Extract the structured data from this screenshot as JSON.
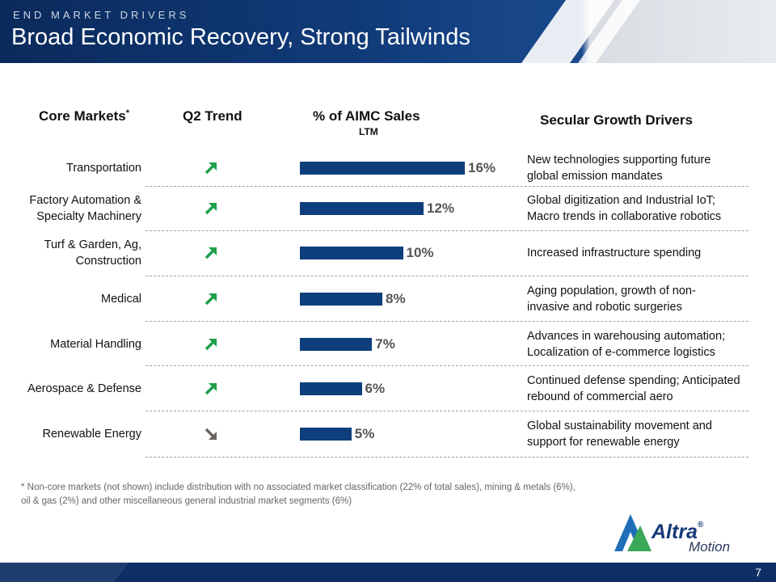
{
  "header": {
    "kicker": "END MARKET DRIVERS",
    "title": "Broad Economic Recovery, Strong Tailwinds"
  },
  "columns": {
    "core_markets": "Core Markets",
    "core_markets_mark": "*",
    "q2_trend": "Q2 Trend",
    "sales": "% of AIMC Sales",
    "sales_sub": "LTM",
    "drivers": "Secular Growth Drivers"
  },
  "colors": {
    "brand_navy": "#0e3f7c",
    "trend_up": "#1fa04a",
    "trend_down": "#6b6560"
  },
  "rows": [
    {
      "market": [
        "Transportation"
      ],
      "trend": "up",
      "pct_label": "16%",
      "pct": 16,
      "driver": [
        "New technologies supporting future",
        "global emission mandates"
      ]
    },
    {
      "market": [
        "Factory Automation &",
        "Specialty Machinery"
      ],
      "trend": "up",
      "pct_label": "12%",
      "pct": 12,
      "driver": [
        "Global digitization and Industrial IoT;",
        "Macro trends in collaborative robotics"
      ]
    },
    {
      "market": [
        "Turf & Garden, Ag,",
        "Construction"
      ],
      "trend": "up",
      "pct_label": "10%",
      "pct": 10,
      "driver": [
        "Increased infrastructure spending"
      ]
    },
    {
      "market": [
        "Medical"
      ],
      "trend": "up",
      "pct_label": "8%",
      "pct": 8,
      "driver": [
        "Aging population, growth of non-",
        "invasive and robotic surgeries"
      ]
    },
    {
      "market": [
        "Material Handling"
      ],
      "trend": "up",
      "pct_label": "7%",
      "pct": 7,
      "driver": [
        "Advances in warehousing automation;",
        "Localization of e-commerce logistics"
      ]
    },
    {
      "market": [
        "Aerospace & Defense"
      ],
      "trend": "up",
      "pct_label": "6%",
      "pct": 6,
      "driver": [
        "Continued defense spending; Anticipated",
        "rebound of commercial aero"
      ]
    },
    {
      "market": [
        "Renewable Energy"
      ],
      "trend": "down",
      "pct_label": "5%",
      "pct": 5,
      "driver": [
        "Global sustainability movement and",
        "support for renewable energy"
      ]
    }
  ],
  "footnote": [
    "* Non-core markets (not shown) include distribution with no associated market classification (22% of total sales), mining & metals (6%),",
    "oil & gas (2%) and other miscellaneous general industrial market segments (6%)"
  ],
  "logo": {
    "name": "Altra",
    "registered": "®",
    "sub": "Motion"
  },
  "page_number": "7"
}
